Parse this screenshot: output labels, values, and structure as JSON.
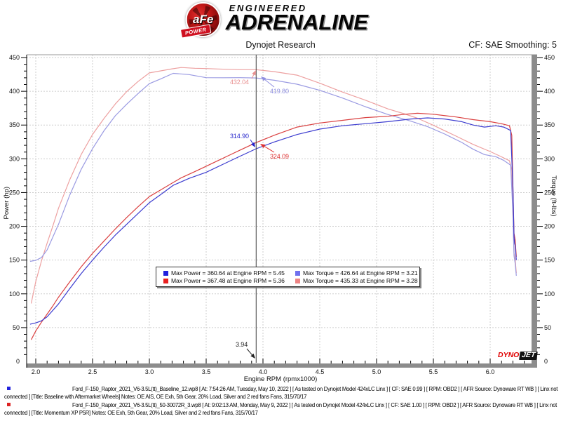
{
  "header": {
    "brand": {
      "circle_text": "aFe",
      "banner_text": "POWER",
      "top_word": "ENGINEERED",
      "bottom_word": "ADRENALINE"
    },
    "title": "Dynojet Research",
    "cf_smoothing": "CF: SAE Smoothing: 5"
  },
  "chart_data": {
    "type": "line",
    "title": "Dynojet Research",
    "xlabel": "Engine RPM (rpmx1000)",
    "ylabel_left": "Power (hp)",
    "ylabel_right": "Torque (ft-lbs)",
    "xlim": [
      1.92,
      6.37
    ],
    "ylim": [
      0,
      454
    ],
    "x_ticks_major": [
      2.0,
      2.5,
      3.0,
      3.5,
      4.0,
      4.5,
      5.0,
      5.5,
      6.0
    ],
    "x_minor_step": 0.1,
    "y_ticks_major": [
      50,
      100,
      150,
      200,
      250,
      300,
      350,
      400,
      450
    ],
    "y_minor_step": 10,
    "grid": "dashed-major",
    "legend_position": "bottom-center-inside",
    "cursor_rpm": 3.94,
    "colors": {
      "grid": "#cdcdcd",
      "band": "#8c8c8c",
      "axis": "#000000",
      "frame_top": "#9a9a9a",
      "cursor": "#3c3c3c"
    },
    "series": [
      {
        "name": "momentum-torque",
        "label": "Momentum XP P5R Torque (ft-lbs)",
        "color": "#eda0a0",
        "max": "435.33 at 3.28",
        "points": [
          [
            1.96,
            85.7
          ],
          [
            2.0,
            118.2
          ],
          [
            2.05,
            148.6
          ],
          [
            2.1,
            175.1
          ],
          [
            2.15,
            200.3
          ],
          [
            2.2,
            226.8
          ],
          [
            2.3,
            269.4
          ],
          [
            2.4,
            306.4
          ],
          [
            2.5,
            336.1
          ],
          [
            2.6,
            359.6
          ],
          [
            2.7,
            381.2
          ],
          [
            2.8,
            399.5
          ],
          [
            2.9,
            414.5
          ],
          [
            3.0,
            427.2
          ],
          [
            3.1,
            430.3
          ],
          [
            3.2,
            433.3
          ],
          [
            3.28,
            435.3
          ],
          [
            3.4,
            434.1
          ],
          [
            3.5,
            433.7
          ],
          [
            3.6,
            433.1
          ],
          [
            3.7,
            432.6
          ],
          [
            3.8,
            432.0
          ],
          [
            3.94,
            432.04
          ],
          [
            4.1,
            429.1
          ],
          [
            4.3,
            423.9
          ],
          [
            4.5,
            412.0
          ],
          [
            4.7,
            398.9
          ],
          [
            4.9,
            386.9
          ],
          [
            5.1,
            373.9
          ],
          [
            5.25,
            366.3
          ],
          [
            5.36,
            360.1
          ],
          [
            5.5,
            349.6
          ],
          [
            5.7,
            333.6
          ],
          [
            5.85,
            321.3
          ],
          [
            6.0,
            310.7
          ],
          [
            6.1,
            302.9
          ],
          [
            6.17,
            297.1
          ],
          [
            6.19,
            284.0
          ],
          [
            6.2,
            220.1
          ],
          [
            6.21,
            160.6
          ],
          [
            6.22,
            152.0
          ],
          [
            6.23,
            130.6
          ]
        ]
      },
      {
        "name": "baseline-torque",
        "label": "Baseline Torque (ft-lbs)",
        "color": "#9a9ae2",
        "max": "426.64 at 3.21",
        "points": [
          [
            1.95,
            148.1
          ],
          [
            2.0,
            149.7
          ],
          [
            2.05,
            153.7
          ],
          [
            2.1,
            165.1
          ],
          [
            2.2,
            202.9
          ],
          [
            2.3,
            246.6
          ],
          [
            2.4,
            284.5
          ],
          [
            2.5,
            315.1
          ],
          [
            2.6,
            341.4
          ],
          [
            2.7,
            363.7
          ],
          [
            2.8,
            380.8
          ],
          [
            2.9,
            396.6
          ],
          [
            3.0,
            411.4
          ],
          [
            3.1,
            418.4
          ],
          [
            3.21,
            426.64
          ],
          [
            3.35,
            424.8
          ],
          [
            3.5,
            420.2
          ],
          [
            3.65,
            420.1
          ],
          [
            3.8,
            420.2
          ],
          [
            3.94,
            419.8
          ],
          [
            4.1,
            416.3
          ],
          [
            4.3,
            410.5
          ],
          [
            4.5,
            401.5
          ],
          [
            4.7,
            390.0
          ],
          [
            4.9,
            377.3
          ],
          [
            5.1,
            365.6
          ],
          [
            5.3,
            355.8
          ],
          [
            5.45,
            347.5
          ],
          [
            5.6,
            336.7
          ],
          [
            5.75,
            324.3
          ],
          [
            5.85,
            314.2
          ],
          [
            5.95,
            306.3
          ],
          [
            6.05,
            303.2
          ],
          [
            6.12,
            297.7
          ],
          [
            6.18,
            290.6
          ],
          [
            6.2,
            220.3
          ],
          [
            6.21,
            156.4
          ],
          [
            6.22,
            145.3
          ],
          [
            6.23,
            126.7
          ]
        ]
      },
      {
        "name": "momentum-power",
        "label": "Momentum XP P5R Power (hp)",
        "color": "#da4040",
        "max": "367.48 at 5.36",
        "points": [
          [
            1.96,
            32
          ],
          [
            2.0,
            45
          ],
          [
            2.05,
            58
          ],
          [
            2.1,
            70
          ],
          [
            2.15,
            82
          ],
          [
            2.2,
            95
          ],
          [
            2.3,
            118
          ],
          [
            2.4,
            140
          ],
          [
            2.5,
            160
          ],
          [
            2.6,
            178
          ],
          [
            2.7,
            196
          ],
          [
            2.8,
            213
          ],
          [
            2.9,
            229
          ],
          [
            3.0,
            244
          ],
          [
            3.1,
            254
          ],
          [
            3.2,
            264
          ],
          [
            3.28,
            271.9
          ],
          [
            3.4,
            281
          ],
          [
            3.5,
            289
          ],
          [
            3.6,
            297
          ],
          [
            3.7,
            305
          ],
          [
            3.8,
            313
          ],
          [
            3.94,
            324.09
          ],
          [
            4.1,
            335
          ],
          [
            4.3,
            347
          ],
          [
            4.5,
            353
          ],
          [
            4.7,
            357
          ],
          [
            4.9,
            361
          ],
          [
            5.1,
            363
          ],
          [
            5.25,
            366
          ],
          [
            5.36,
            367.48
          ],
          [
            5.5,
            366
          ],
          [
            5.7,
            362
          ],
          [
            5.85,
            358
          ],
          [
            6.0,
            355
          ],
          [
            6.1,
            352
          ],
          [
            6.17,
            349
          ],
          [
            6.19,
            335
          ],
          [
            6.2,
            260
          ],
          [
            6.21,
            190
          ],
          [
            6.22,
            180
          ],
          [
            6.23,
            155
          ]
        ]
      },
      {
        "name": "baseline-power",
        "label": "Baseline Power (hp)",
        "color": "#3c3ccf",
        "max": "360.64 at 5.45",
        "points": [
          [
            1.95,
            55
          ],
          [
            2.0,
            57
          ],
          [
            2.05,
            60
          ],
          [
            2.1,
            66
          ],
          [
            2.2,
            85
          ],
          [
            2.3,
            108
          ],
          [
            2.4,
            130
          ],
          [
            2.5,
            150
          ],
          [
            2.6,
            169
          ],
          [
            2.7,
            187
          ],
          [
            2.8,
            203
          ],
          [
            2.9,
            219
          ],
          [
            3.0,
            235
          ],
          [
            3.1,
            247
          ],
          [
            3.21,
            260.8
          ],
          [
            3.35,
            271
          ],
          [
            3.5,
            280
          ],
          [
            3.65,
            292
          ],
          [
            3.8,
            304
          ],
          [
            3.94,
            314.9
          ],
          [
            4.1,
            325
          ],
          [
            4.3,
            336
          ],
          [
            4.5,
            344
          ],
          [
            4.7,
            349
          ],
          [
            4.9,
            352
          ],
          [
            5.1,
            355
          ],
          [
            5.3,
            359
          ],
          [
            5.45,
            360.64
          ],
          [
            5.6,
            359
          ],
          [
            5.75,
            355
          ],
          [
            5.85,
            350
          ],
          [
            5.95,
            347
          ],
          [
            6.05,
            349
          ],
          [
            6.12,
            347
          ],
          [
            6.18,
            342
          ],
          [
            6.2,
            260
          ],
          [
            6.21,
            185
          ],
          [
            6.215,
            175
          ],
          [
            6.22,
            172
          ],
          [
            6.23,
            150
          ]
        ]
      }
    ]
  },
  "legend": {
    "items": [
      {
        "color": "#2020dd",
        "label": "Max Power = 360.64 at Engine RPM = 5.45"
      },
      {
        "color": "#7070ee",
        "label": "Max Torque = 426.64 at Engine RPM = 3.21"
      },
      {
        "color": "#e82020",
        "label": "Max Power = 367.48 at Engine RPM = 5.36"
      },
      {
        "color": "#ee8484",
        "label": "Max Torque = 435.33 at Engine RPM = 3.28"
      }
    ]
  },
  "callouts": [
    {
      "name": "torque-momentum-value",
      "text": "432.04",
      "color": "#e89090"
    },
    {
      "name": "torque-baseline-value",
      "text": "419.80",
      "color": "#9090e0"
    },
    {
      "name": "power-baseline-value",
      "text": "314.90",
      "color": "#2626cc"
    },
    {
      "name": "power-momentum-value",
      "text": "324.09",
      "color": "#dd3030"
    },
    {
      "name": "cursor-rpm-value",
      "text": "3.94",
      "color": "#222222"
    }
  ],
  "watermark": {
    "part1": "DYNO",
    "part2": "JET"
  },
  "footer": {
    "runs": [
      {
        "bullet_color": "#2222dd",
        "line1": "Ford_F-150_Raptor_2021_V6-3.5L(tt)_Baseline_12.wp8 [ At: 7:54:26 AM, Tuesday, May 10, 2022 ] [ As tested on Dynojet Model 424xLC Linx ] [ CF: SAE 0.99 ] [ RPM: OBD2 ] [ AFR Source: Dynoware RT WB ] [ Linx not",
        "line2": "connected ] [Title: Baseline with Aftermarket Wheels]  Notes: OE AIS, OE Exh, 5th Gear, 20% Load, Silver and 2 red fans Fans, 315/70/17"
      },
      {
        "bullet_color": "#dd2222",
        "line1": "Ford_F-150_Raptor_2021_V6-3.5L(tt)_50-30072R_3.wp8 [ At: 9:02:13 AM, Monday, May 9, 2022 ] [ As tested on Dynojet Model 424xLC Linx ] [ CF: SAE 1.00 ] [ RPM: OBD2 ] [ AFR Source: Dynoware RT WB ] [ Linx not",
        "line2": "connected ] [Title: Momentum XP P5R]  Notes: OE Exh, 5th Gear, 20% Load, Silver and 2 red fans Fans, 315/70/17"
      }
    ]
  }
}
